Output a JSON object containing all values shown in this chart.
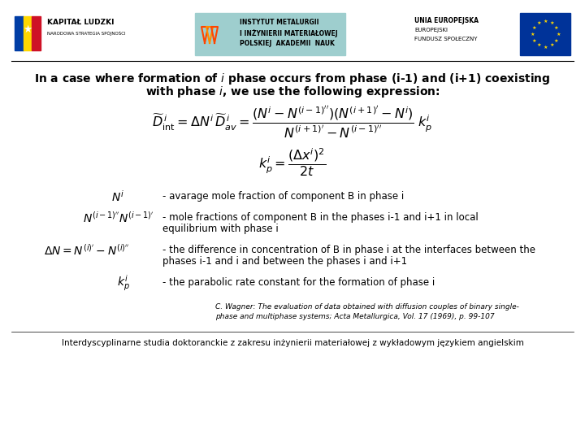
{
  "bg_color": "#ffffff",
  "title_line1": "In a case where formation of $i$ phase occurs from phase (i-1) and (i+1) coexisting",
  "title_line2": "with phase $i$, we use the following expression:",
  "desc1": "- avarage mole fraction of component B in phase i",
  "desc2a": "- mole fractions of component B in the phases i-1 and i+1 in local",
  "desc2b": "equilibrium with phase i",
  "desc3a": "- the difference in concentration of B in phase i at the interfaces between the",
  "desc3b": "phases i-1 and i and between the phases i and i+1",
  "desc4": "- the parabolic rate constant for the formation of phase i",
  "reference_line1": "C. Wagner: The evaluation of data obtained with diffusion couples of binary single-",
  "reference_line2": "phase and multiphase systems; Acta Metallurgica, Vol. 17 (1969), p. 99-107",
  "footer": "Interdyscyplinarne studia doktoranckie z zakresu inżynierii materiałowej z wykładowym językiem angielskim",
  "header_left_text1": "KAPITAŁ LUDZKI",
  "header_left_text2": "NARODOWA STRATEGIA SPÓJNOŚCI",
  "header_mid_text1": "INSTYTUT METALURGII",
  "header_mid_text2": "I INŻYNIERII MATERIAŁOWEJ",
  "header_mid_text3": "POLSKIEJ  AKADEMII  NAUK",
  "header_right_text1": "UNIA EUROPEJSKA",
  "header_right_text2": "EUROPEJSKI",
  "header_right_text3": "FUNDUSZ SPOŁECZNY"
}
